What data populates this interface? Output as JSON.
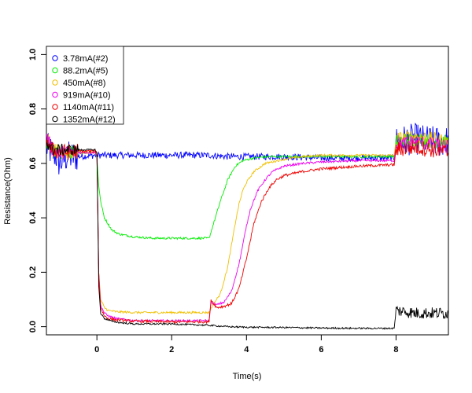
{
  "chart_data": {
    "type": "line",
    "title": "",
    "xlabel": "Time(s)",
    "ylabel": "Resistance(Ohm)",
    "xlim": [
      -1.35,
      9.4
    ],
    "ylim": [
      -0.03,
      1.03
    ],
    "x_ticks": [
      0,
      2,
      4,
      6,
      8
    ],
    "x_tick_labels": [
      "0",
      "2",
      "4",
      "6",
      "8"
    ],
    "y_ticks": [
      0.0,
      0.2,
      0.4,
      0.6,
      0.8,
      1.0
    ],
    "y_tick_labels": [
      "0.0",
      "0.2",
      "0.4",
      "0.6",
      "0.8",
      "1.0"
    ],
    "grid": false,
    "legend_position": "top-left",
    "series": [
      {
        "name": "3.78mA(#2)",
        "color": "#0000ff",
        "x": [
          -1.35,
          -1.2,
          -1.1,
          -1.0,
          -0.8,
          -0.5,
          0.0,
          1.0,
          2.0,
          2.9,
          3.0,
          3.5,
          4.0,
          4.5,
          5.0,
          6.0,
          7.0,
          7.95,
          8.0,
          8.5,
          9.0,
          9.4
        ],
        "y": [
          0.66,
          0.64,
          0.63,
          0.6,
          0.625,
          0.625,
          0.63,
          0.63,
          0.63,
          0.63,
          0.63,
          0.625,
          0.625,
          0.625,
          0.625,
          0.62,
          0.62,
          0.62,
          0.68,
          0.69,
          0.68,
          0.68
        ],
        "noise": 0.012
      },
      {
        "name": "88.2mA(#5)",
        "color": "#00ee00",
        "x": [
          -1.35,
          -1.2,
          -1.0,
          -0.5,
          -0.05,
          0.0,
          0.05,
          0.1,
          0.2,
          0.4,
          0.6,
          1.0,
          1.5,
          2.0,
          2.5,
          3.0,
          3.1,
          3.3,
          3.5,
          3.7,
          3.9,
          4.2,
          4.6,
          5.0,
          6.0,
          7.0,
          7.95,
          8.0,
          8.5,
          9.0,
          9.4
        ],
        "y": [
          0.68,
          0.64,
          0.64,
          0.64,
          0.64,
          0.62,
          0.52,
          0.46,
          0.4,
          0.355,
          0.34,
          0.33,
          0.325,
          0.325,
          0.325,
          0.325,
          0.37,
          0.46,
          0.54,
          0.59,
          0.61,
          0.62,
          0.625,
          0.625,
          0.625,
          0.625,
          0.625,
          0.68,
          0.69,
          0.68,
          0.68
        ],
        "noise": 0.004
      },
      {
        "name": "450mA(#8)",
        "color": "#f0c000",
        "x": [
          -1.35,
          -1.2,
          -1.0,
          -0.5,
          -0.05,
          0.0,
          0.05,
          0.1,
          0.2,
          0.3,
          0.5,
          1.0,
          2.0,
          3.0,
          3.1,
          3.3,
          3.5,
          3.6,
          3.7,
          3.8,
          3.9,
          4.0,
          4.2,
          4.5,
          5.0,
          5.5,
          6.0,
          7.0,
          7.95,
          8.0,
          8.5,
          9.0,
          9.4
        ],
        "y": [
          0.7,
          0.65,
          0.64,
          0.64,
          0.64,
          0.63,
          0.2,
          0.1,
          0.07,
          0.06,
          0.055,
          0.052,
          0.052,
          0.052,
          0.08,
          0.12,
          0.22,
          0.3,
          0.38,
          0.45,
          0.5,
          0.53,
          0.57,
          0.6,
          0.615,
          0.625,
          0.63,
          0.63,
          0.63,
          0.69,
          0.7,
          0.69,
          0.68
        ],
        "noise": 0.004
      },
      {
        "name": "919mA(#10)",
        "color": "#ee00ee",
        "x": [
          -1.35,
          -1.2,
          -1.0,
          -0.5,
          -0.05,
          0.0,
          0.05,
          0.1,
          0.2,
          0.3,
          0.5,
          1.0,
          2.0,
          3.0,
          3.05,
          3.2,
          3.4,
          3.6,
          3.8,
          4.0,
          4.1,
          4.3,
          4.5,
          4.7,
          5.0,
          5.5,
          6.0,
          7.0,
          7.95,
          8.0,
          8.5,
          9.0,
          9.4
        ],
        "y": [
          0.7,
          0.65,
          0.64,
          0.64,
          0.64,
          0.63,
          0.2,
          0.08,
          0.05,
          0.04,
          0.03,
          0.022,
          0.022,
          0.022,
          0.09,
          0.08,
          0.09,
          0.13,
          0.23,
          0.37,
          0.43,
          0.5,
          0.54,
          0.57,
          0.59,
          0.6,
          0.605,
          0.61,
          0.61,
          0.67,
          0.68,
          0.67,
          0.66
        ],
        "noise": 0.004
      },
      {
        "name": "1140mA(#11)",
        "color": "#ee0000",
        "x": [
          -1.35,
          -1.2,
          -1.0,
          -0.5,
          -0.05,
          0.0,
          0.05,
          0.1,
          0.2,
          0.3,
          0.5,
          1.0,
          2.0,
          3.0,
          3.05,
          3.2,
          3.4,
          3.6,
          3.8,
          4.0,
          4.2,
          4.4,
          4.6,
          4.8,
          5.0,
          5.5,
          6.0,
          7.0,
          7.95,
          8.0,
          8.5,
          9.0,
          9.4
        ],
        "y": [
          0.69,
          0.65,
          0.64,
          0.645,
          0.645,
          0.64,
          0.2,
          0.07,
          0.04,
          0.03,
          0.025,
          0.02,
          0.018,
          0.018,
          0.1,
          0.07,
          0.075,
          0.085,
          0.14,
          0.25,
          0.38,
          0.46,
          0.51,
          0.54,
          0.555,
          0.57,
          0.58,
          0.59,
          0.595,
          0.65,
          0.66,
          0.65,
          0.64
        ],
        "noise": 0.005
      },
      {
        "name": "1352mA(#12)",
        "color": "#000000",
        "x": [
          -1.35,
          -1.2,
          -1.0,
          -0.5,
          -0.05,
          0.0,
          0.05,
          0.1,
          0.2,
          0.4,
          0.6,
          1.0,
          2.0,
          3.0,
          3.5,
          4.0,
          5.0,
          6.0,
          7.0,
          7.95,
          8.0,
          8.5,
          9.0,
          9.4
        ],
        "y": [
          0.68,
          0.65,
          0.65,
          0.65,
          0.65,
          0.64,
          0.15,
          0.05,
          0.03,
          0.02,
          0.015,
          0.01,
          0.01,
          0.005,
          0.0,
          -0.002,
          -0.003,
          -0.005,
          -0.006,
          -0.006,
          0.06,
          0.05,
          0.05,
          0.05
        ],
        "noise": 0.003
      }
    ]
  }
}
